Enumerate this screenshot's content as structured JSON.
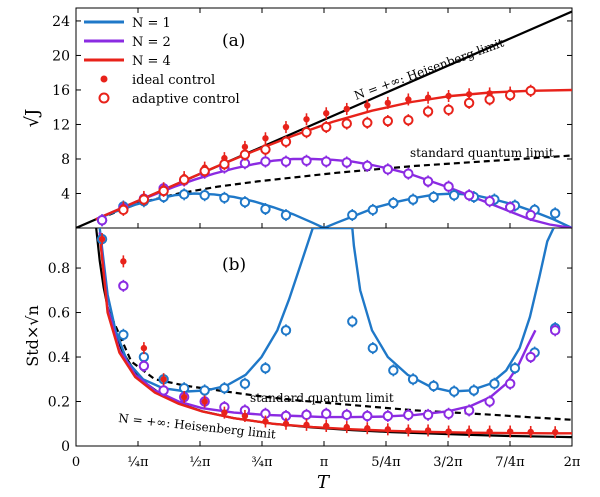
{
  "chart_data": [
    {
      "panel_label": "(a)",
      "type": "line",
      "xlabel": "",
      "ylabel": "√J",
      "xlim": [
        0,
        6.2832
      ],
      "ylim": [
        0,
        25.5
      ],
      "yticks": [
        4,
        8,
        12,
        16,
        20,
        24
      ],
      "legend": {
        "placement": "top-left",
        "entries": [
          {
            "label": "N = 1",
            "symbol": "line",
            "color": "#1f78c8"
          },
          {
            "label": "N = 2",
            "symbol": "line",
            "color": "#8b2be2"
          },
          {
            "label": "N = 4",
            "symbol": "line",
            "color": "#e8221a"
          },
          {
            "label": "ideal control",
            "symbol": "filled-dot",
            "color": "#e8221a"
          },
          {
            "label": "adaptive control",
            "symbol": "open-circle",
            "color": "#e8221a"
          }
        ]
      },
      "annotations": {
        "heisenberg": "N = +∞: Heisenberg limit",
        "sql": "standard quantum limit"
      },
      "series": [
        {
          "name": "N = +∞: Heisenberg limit",
          "style": "solid",
          "color": "#000000",
          "x": [
            0,
            6.2832
          ],
          "y": [
            0,
            25.1
          ]
        },
        {
          "name": "standard quantum limit",
          "style": "dashed",
          "color": "#000000",
          "x": [
            0.3,
            0.8,
            1.3,
            1.8,
            2.3,
            2.8,
            3.3,
            3.8,
            4.3,
            4.8,
            5.3,
            5.8,
            6.28
          ],
          "y": [
            1.1,
            2.9,
            4.0,
            4.8,
            5.4,
            5.9,
            6.4,
            6.8,
            7.2,
            7.5,
            7.8,
            8.1,
            8.4
          ]
        },
        {
          "name": "N = 1",
          "style": "solid",
          "color": "#1f78c8",
          "x": [
            0.25,
            0.5,
            0.75,
            1.0,
            1.25,
            1.5,
            1.75,
            2.0,
            2.25,
            2.5,
            2.75,
            3.0,
            3.1416,
            3.3,
            3.55,
            3.8,
            4.05,
            4.3,
            4.55,
            4.8,
            5.05,
            5.3,
            5.55,
            5.8,
            6.05,
            6.2832
          ],
          "y": [
            1.0,
            1.9,
            2.7,
            3.3,
            3.8,
            4.0,
            3.9,
            3.6,
            3.1,
            2.4,
            1.6,
            0.6,
            0.0,
            0.6,
            1.5,
            2.4,
            3.0,
            3.5,
            3.9,
            4.0,
            3.8,
            3.3,
            2.7,
            1.9,
            1.0,
            0.0
          ]
        },
        {
          "name": "N = 2",
          "style": "solid",
          "color": "#8b2be2",
          "x": [
            0.25,
            0.5,
            0.75,
            1.0,
            1.25,
            1.5,
            1.75,
            2.0,
            2.25,
            2.5,
            2.75,
            3.0,
            3.25,
            3.5,
            3.75,
            4.0,
            4.25,
            4.5,
            4.75,
            5.0,
            5.25,
            5.5,
            5.75,
            6.0,
            6.2832
          ],
          "y": [
            1.0,
            2.0,
            3.0,
            3.9,
            4.8,
            5.6,
            6.3,
            6.9,
            7.4,
            7.8,
            8.0,
            8.0,
            7.9,
            7.7,
            7.3,
            6.8,
            6.2,
            5.4,
            4.6,
            3.7,
            2.8,
            1.9,
            1.0,
            0.4,
            0.0
          ]
        },
        {
          "name": "N = 4",
          "style": "solid",
          "color": "#e8221a",
          "x": [
            0.25,
            0.75,
            1.25,
            1.75,
            2.25,
            2.75,
            3.25,
            3.75,
            4.25,
            4.75,
            5.25,
            5.75,
            6.2832
          ],
          "y": [
            1.0,
            3.0,
            5.0,
            7.0,
            8.9,
            10.7,
            12.3,
            13.6,
            14.6,
            15.3,
            15.7,
            15.9,
            16.0
          ]
        }
      ],
      "markers": [
        {
          "series": "N = 1",
          "style": "open-circle",
          "color": "#1f78c8",
          "x": [
            0.33,
            0.6,
            0.86,
            1.11,
            1.37,
            1.63,
            1.88,
            2.14,
            2.4,
            2.66,
            3.5,
            3.76,
            4.02,
            4.27,
            4.53,
            4.79,
            5.04,
            5.3,
            5.56,
            5.81,
            6.07
          ],
          "y": [
            0.9,
            2.5,
            3.1,
            3.6,
            3.9,
            3.8,
            3.5,
            3.0,
            2.2,
            1.5,
            1.5,
            2.1,
            2.9,
            3.3,
            3.6,
            3.8,
            3.6,
            3.3,
            2.6,
            2.1,
            1.7
          ]
        },
        {
          "series": "N = 2",
          "style": "open-circle",
          "color": "#8b2be2",
          "x": [
            0.33,
            0.6,
            0.86,
            1.11,
            1.37,
            1.63,
            1.88,
            2.14,
            2.4,
            2.66,
            2.92,
            3.17,
            3.43,
            3.69,
            3.95,
            4.21,
            4.46,
            4.72,
            4.98,
            5.24,
            5.5,
            5.76
          ],
          "y": [
            0.9,
            2.3,
            3.4,
            4.6,
            5.5,
            6.4,
            7.0,
            7.5,
            7.7,
            7.7,
            7.8,
            7.7,
            7.6,
            7.2,
            6.8,
            6.3,
            5.4,
            4.8,
            3.8,
            3.1,
            2.4,
            1.5
          ]
        },
        {
          "series": "N = 4",
          "style": "filled-dot",
          "color": "#e8221a",
          "x": [
            0.6,
            0.86,
            1.11,
            1.37,
            1.63,
            1.88,
            2.14,
            2.4,
            2.66,
            2.92,
            3.17,
            3.43,
            3.69,
            3.95,
            4.21,
            4.46,
            4.72,
            4.98,
            5.24,
            5.5,
            5.76
          ],
          "y": [
            2.4,
            3.6,
            4.6,
            5.9,
            7.0,
            8.1,
            9.4,
            10.4,
            11.7,
            12.6,
            13.3,
            13.8,
            14.2,
            14.5,
            14.9,
            15.1,
            15.3,
            15.5,
            15.6,
            15.7,
            15.9
          ]
        },
        {
          "series": "N = 4",
          "style": "open-circle",
          "color": "#e8221a",
          "x": [
            0.6,
            0.86,
            1.11,
            1.37,
            1.63,
            1.88,
            2.14,
            2.4,
            2.66,
            2.92,
            3.17,
            3.43,
            3.69,
            3.95,
            4.21,
            4.46,
            4.72,
            4.98,
            5.24,
            5.5,
            5.76
          ],
          "y": [
            2.1,
            3.3,
            4.3,
            5.6,
            6.6,
            7.4,
            8.5,
            9.1,
            10.0,
            11.1,
            11.7,
            12.1,
            12.2,
            12.4,
            12.5,
            13.5,
            13.7,
            14.5,
            14.9,
            15.4,
            15.9
          ]
        }
      ]
    },
    {
      "panel_label": "(b)",
      "type": "line",
      "xlabel": "T",
      "ylabel": "Std×√n",
      "xlim": [
        0,
        6.2832
      ],
      "ylim": [
        0,
        0.98
      ],
      "xticks": [
        "0",
        "¼π",
        "½π",
        "¾π",
        "π",
        "5/4π",
        "3/2π",
        "7/4π",
        "2π"
      ],
      "yticks": [
        "0",
        "0.2",
        "0.4",
        "0.6",
        "0.8"
      ],
      "annotations": {
        "heisenberg": "N = +∞: Heisenberg limit",
        "sql": "standard quantum limit"
      },
      "series": [
        {
          "name": "N = +∞: Heisenberg limit",
          "style": "solid",
          "color": "#000000",
          "x": [
            0.25,
            0.3,
            0.35,
            0.4,
            0.5,
            0.6,
            0.75,
            0.9,
            1.1,
            1.3,
            1.6,
            2.0,
            2.5,
            3.0,
            3.5,
            4.0,
            4.5,
            5.0,
            5.5,
            6.0,
            6.2832
          ],
          "y": [
            1.0,
            0.833,
            0.714,
            0.625,
            0.5,
            0.417,
            0.333,
            0.278,
            0.227,
            0.192,
            0.156,
            0.125,
            0.1,
            0.083,
            0.071,
            0.0625,
            0.056,
            0.05,
            0.045,
            0.042,
            0.04
          ]
        },
        {
          "name": "standard quantum limit",
          "style": "dashed",
          "color": "#000000",
          "x": [
            0.4,
            0.7,
            1.0,
            1.4,
            1.8,
            2.3,
            2.8,
            3.3,
            3.8,
            4.3,
            4.8,
            5.3,
            5.8,
            6.2832
          ],
          "y": [
            0.62,
            0.38,
            0.3,
            0.27,
            0.25,
            0.225,
            0.205,
            0.19,
            0.175,
            0.16,
            0.15,
            0.14,
            0.128,
            0.118
          ]
        },
        {
          "name": "N = 1",
          "style": "solid",
          "color": "#1f78c8",
          "x": [
            0.3,
            0.4,
            0.5,
            0.65,
            0.85,
            1.1,
            1.4,
            1.65,
            1.9,
            2.15,
            2.35,
            2.55,
            2.7,
            2.85,
            3.0,
            3.5,
            3.52,
            3.6,
            3.75,
            3.95,
            4.2,
            4.5,
            4.75,
            5.0,
            5.25,
            5.45,
            5.62,
            5.75,
            5.87,
            5.97,
            6.05
          ],
          "y": [
            0.98,
            0.68,
            0.52,
            0.38,
            0.3,
            0.26,
            0.245,
            0.25,
            0.27,
            0.32,
            0.4,
            0.52,
            0.66,
            0.82,
            0.98,
            0.98,
            0.9,
            0.7,
            0.52,
            0.4,
            0.32,
            0.265,
            0.245,
            0.25,
            0.28,
            0.34,
            0.44,
            0.58,
            0.76,
            0.92,
            0.98
          ]
        },
        {
          "name": "N = 2",
          "style": "solid",
          "color": "#8b2be2",
          "x": [
            0.3,
            0.4,
            0.55,
            0.75,
            1.0,
            1.3,
            1.6,
            2.0,
            2.4,
            2.8,
            3.14,
            3.5,
            3.9,
            4.3,
            4.7,
            5.0,
            5.25,
            5.45,
            5.6,
            5.72,
            5.82
          ],
          "y": [
            0.96,
            0.62,
            0.43,
            0.32,
            0.25,
            0.2,
            0.17,
            0.15,
            0.14,
            0.135,
            0.13,
            0.13,
            0.132,
            0.14,
            0.155,
            0.18,
            0.22,
            0.28,
            0.36,
            0.45,
            0.52
          ]
        },
        {
          "name": "N = 4",
          "style": "solid",
          "color": "#e8221a",
          "x": [
            0.3,
            0.4,
            0.55,
            0.75,
            1.0,
            1.3,
            1.6,
            2.0,
            2.5,
            3.0,
            3.5,
            4.0,
            4.5,
            5.0,
            5.5,
            6.0,
            6.2832
          ],
          "y": [
            0.95,
            0.6,
            0.42,
            0.31,
            0.24,
            0.19,
            0.155,
            0.125,
            0.1,
            0.085,
            0.075,
            0.068,
            0.063,
            0.06,
            0.058,
            0.057,
            0.057
          ]
        }
      ],
      "markers": [
        {
          "series": "N = 1",
          "style": "open-circle",
          "color": "#1f78c8",
          "x": [
            0.33,
            0.6,
            0.86,
            1.11,
            1.37,
            1.63,
            1.88,
            2.14,
            2.4,
            2.66,
            3.5,
            3.76,
            4.02,
            4.27,
            4.53,
            4.79,
            5.04,
            5.3,
            5.56,
            5.81,
            6.07
          ],
          "y": [
            0.93,
            0.5,
            0.4,
            0.3,
            0.26,
            0.25,
            0.26,
            0.28,
            0.35,
            0.52,
            0.56,
            0.44,
            0.34,
            0.3,
            0.27,
            0.245,
            0.25,
            0.28,
            0.35,
            0.42,
            0.53
          ]
        },
        {
          "series": "N = 2",
          "style": "open-circle",
          "color": "#8b2be2",
          "x": [
            0.6,
            0.86,
            1.11,
            1.37,
            1.63,
            1.88,
            2.14,
            2.4,
            2.66,
            2.92,
            3.17,
            3.43,
            3.69,
            3.95,
            4.21,
            4.46,
            4.72,
            4.98,
            5.24,
            5.5,
            5.76,
            6.07
          ],
          "y": [
            0.72,
            0.36,
            0.25,
            0.22,
            0.2,
            0.175,
            0.16,
            0.145,
            0.135,
            0.14,
            0.145,
            0.14,
            0.135,
            0.135,
            0.14,
            0.14,
            0.145,
            0.16,
            0.2,
            0.28,
            0.4,
            0.52
          ]
        },
        {
          "series": "N = 4",
          "style": "filled-dot",
          "color": "#e8221a",
          "x": [
            0.33,
            0.6,
            0.86,
            1.11,
            1.37,
            1.63,
            1.88,
            2.14,
            2.4,
            2.66,
            2.92,
            3.17,
            3.43,
            3.69,
            3.95,
            4.21,
            4.46,
            4.72,
            4.98,
            5.24,
            5.5,
            5.76,
            6.07
          ],
          "y": [
            0.93,
            0.83,
            0.44,
            0.3,
            0.22,
            0.2,
            0.15,
            0.135,
            0.11,
            0.1,
            0.095,
            0.09,
            0.085,
            0.08,
            0.075,
            0.07,
            0.07,
            0.065,
            0.065,
            0.065,
            0.065,
            0.063,
            0.062
          ]
        }
      ]
    }
  ]
}
